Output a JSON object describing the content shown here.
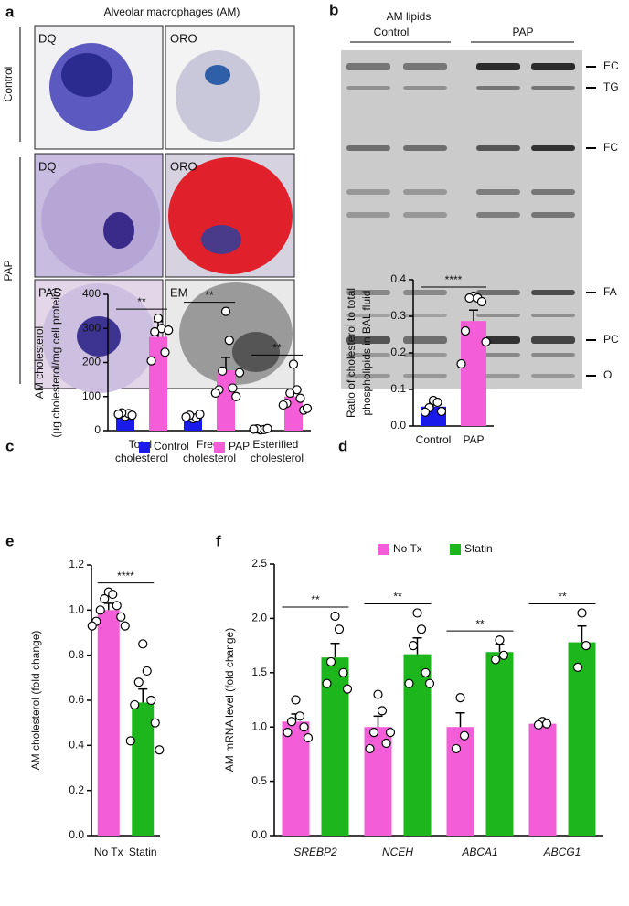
{
  "panel_a": {
    "label": "a",
    "title": "Alveolar macrophages (AM)",
    "groups": [
      "Control",
      "PAP"
    ],
    "images": [
      "DQ",
      "ORO",
      "DQ",
      "ORO",
      "PAS",
      "EM"
    ]
  },
  "panel_b": {
    "label": "b",
    "title": "AM lipids",
    "groups": [
      "Control",
      "PAP"
    ],
    "bands": [
      "EC",
      "TG",
      "FC",
      "FA",
      "PC",
      "O"
    ]
  },
  "chart_data": [
    {
      "type": "bar",
      "panel": "c",
      "ylabel": [
        "AM cholesterol",
        "(µg cholesterol/mg cell protein)"
      ],
      "categories": [
        "Total cholesterol",
        "Free cholesterol",
        "Esterified cholesterol"
      ],
      "series": [
        {
          "name": "Control",
          "color": "#1a1aeb",
          "values": [
            47,
            41,
            4
          ],
          "errors": [
            4,
            4,
            1
          ],
          "points": [
            [
              42,
              50,
              52,
              45,
              48
            ],
            [
              35,
              38,
              45,
              48,
              40
            ],
            [
              2,
              3,
              5,
              6,
              4
            ]
          ]
        },
        {
          "name": "PAP",
          "color": "#f35ed8",
          "values": [
            275,
            177,
            100
          ],
          "errors": [
            45,
            38,
            20
          ],
          "points": [
            [
              330,
              300,
              290,
              230,
              205,
              295
            ],
            [
              350,
              265,
              175,
              125,
              120,
              100,
              110,
              170
            ],
            [
              195,
              120,
              110,
              95,
              80,
              60,
              75,
              65
            ]
          ]
        }
      ],
      "significance": [
        "**",
        "**",
        "**"
      ],
      "ylim": [
        0,
        400
      ],
      "yticks": [
        0,
        100,
        200,
        300,
        400
      ]
    },
    {
      "type": "bar",
      "panel": "d",
      "ylabel": [
        "Ratio of cholesterol to total",
        "phospholipids in BAL fluid"
      ],
      "categories": [
        "Control",
        "PAP"
      ],
      "colors": [
        "#1a1aeb",
        "#f35ed8"
      ],
      "values": [
        0.053,
        0.287
      ],
      "errors": [
        0.012,
        0.03
      ],
      "points": [
        [
          0.07,
          0.065,
          0.05,
          0.04,
          0.038
        ],
        [
          0.355,
          0.35,
          0.35,
          0.34,
          0.26,
          0.23,
          0.17
        ]
      ],
      "significance": [
        "****"
      ],
      "ylim": [
        0,
        0.4
      ],
      "yticks": [
        {
          "value": 0,
          "label": "0.0"
        },
        0.1,
        0.2,
        0.3,
        0.4
      ]
    },
    {
      "type": "bar",
      "panel": "e",
      "ylabel": [
        "AM cholesterol (fold change)"
      ],
      "categories": [
        "No Tx",
        "Statin"
      ],
      "colors": [
        "#f35ed8",
        "#1db61d"
      ],
      "values": [
        1.0,
        0.59
      ],
      "errors": [
        0.03,
        0.06
      ],
      "points": [
        [
          1.08,
          1.07,
          1.05,
          1.02,
          1.0,
          0.97,
          0.95,
          0.93,
          0.93
        ],
        [
          0.85,
          0.73,
          0.68,
          0.6,
          0.58,
          0.5,
          0.42,
          0.38
        ]
      ],
      "significance": [
        "****"
      ],
      "ylim": [
        0,
        1.2
      ],
      "yticks": [
        {
          "value": 0,
          "label": "0.0"
        },
        0.2,
        0.4,
        0.6,
        0.8,
        {
          "value": 1,
          "label": "1.0"
        },
        1.2
      ]
    },
    {
      "type": "bar",
      "panel": "f",
      "ylabel": [
        "AM mRNA level (fold change)"
      ],
      "categories": [
        "SREBP2",
        "NCEH",
        "ABCA1",
        "ABCG1"
      ],
      "series": [
        {
          "name": "No Tx",
          "color": "#f35ed8",
          "values": [
            1.05,
            1.0,
            1.0,
            1.03
          ],
          "errors": [
            0.07,
            0.1,
            0.13,
            0.02
          ],
          "points": [
            [
              1.25,
              1.1,
              1.05,
              1.0,
              0.95,
              0.9
            ],
            [
              1.3,
              1.15,
              0.95,
              0.85,
              0.8,
              0.95
            ],
            [
              1.27,
              0.92,
              0.8
            ],
            [
              1.05,
              1.03,
              1.02
            ]
          ]
        },
        {
          "name": "Statin",
          "color": "#1db61d",
          "values": [
            1.64,
            1.67,
            1.69,
            1.78
          ],
          "errors": [
            0.13,
            0.15,
            0.07,
            0.15
          ],
          "points": [
            [
              2.02,
              1.9,
              1.6,
              1.5,
              1.4,
              1.35
            ],
            [
              2.05,
              1.9,
              1.75,
              1.5,
              1.4,
              1.4
            ],
            [
              1.8,
              1.66,
              1.62
            ],
            [
              2.05,
              1.75,
              1.55
            ]
          ]
        }
      ],
      "significance": [
        "**",
        "**",
        "**",
        "**"
      ],
      "ylim": [
        0,
        2.5
      ],
      "yticks": [
        {
          "value": 0,
          "label": "0.0"
        },
        0.5,
        {
          "value": 1,
          "label": "1.0"
        },
        1.5,
        {
          "value": 2,
          "label": "2.0"
        },
        2.5
      ]
    }
  ]
}
